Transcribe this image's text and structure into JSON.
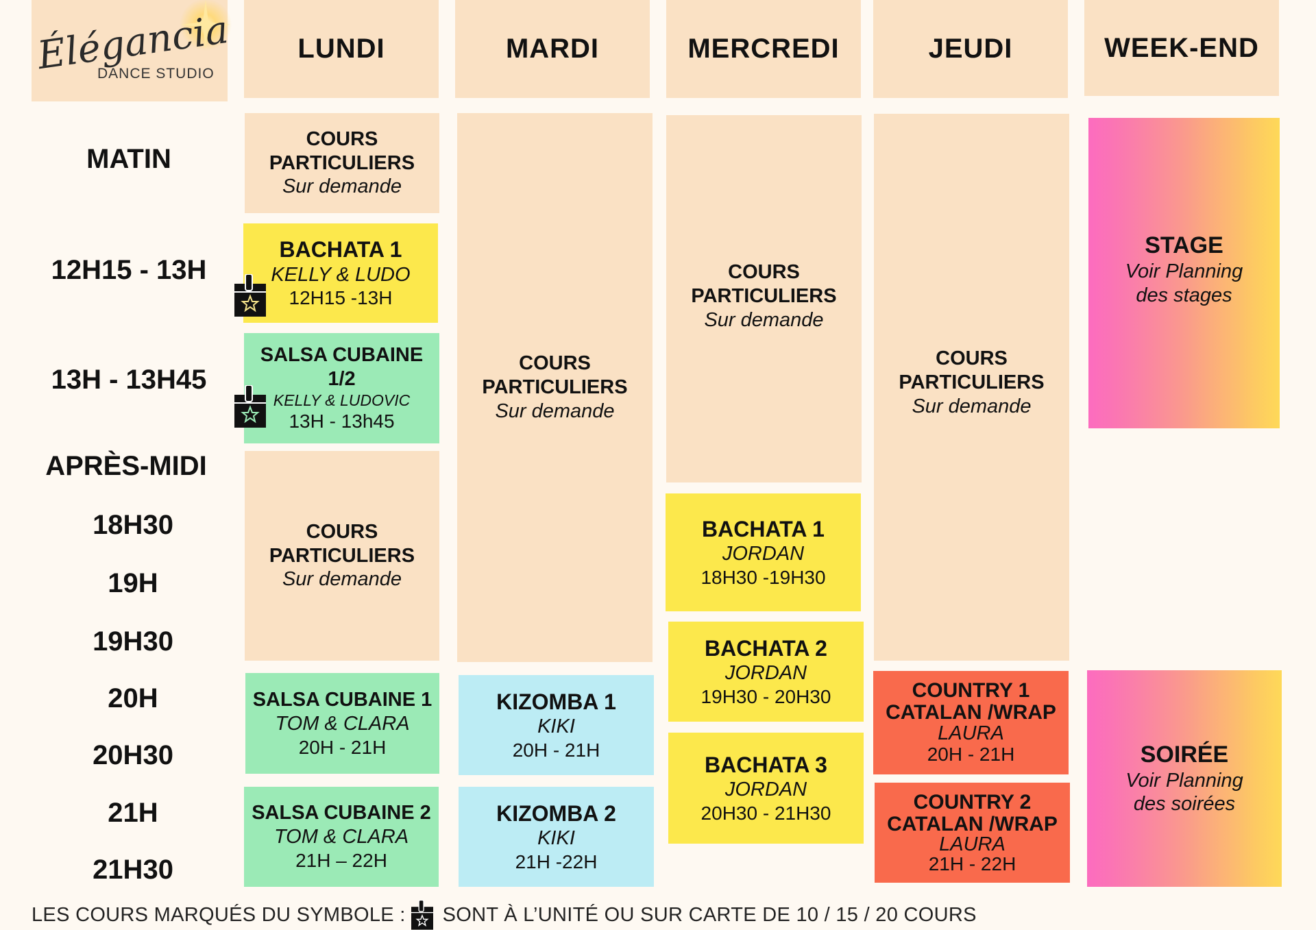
{
  "logo": {
    "name": "Élégancia",
    "subtitle": "DANCE STUDIO"
  },
  "days": [
    "LUNDI",
    "MARDI",
    "MERCREDI",
    "JEUDI",
    "WEEK-END"
  ],
  "times": {
    "matin": "MATIN",
    "t1": "12H15 - 13H",
    "t2": "13H - 13H45",
    "apres_midi": "APRÈS-MIDI",
    "t3": "18H30",
    "t4": "19H",
    "t5": "19H30",
    "t6": "20H",
    "t7": "20H30",
    "t8": "21H",
    "t9": "21H30"
  },
  "private": {
    "line1": "COURS",
    "line2": "PARTICULIERS",
    "line3": "Sur demande"
  },
  "lundi": {
    "bachata1": {
      "title": "BACHATA 1",
      "teacher": "KELLY & LUDO",
      "hours": "12H15 -13H"
    },
    "salsa12": {
      "title": "SALSA CUBAINE",
      "level": "1/2",
      "teacher": "KELLY & LUDOVIC",
      "hours": "13H - 13h45"
    },
    "salsa1": {
      "title": "SALSA CUBAINE 1",
      "teacher": "TOM & CLARA",
      "hours": "20H - 21H"
    },
    "salsa2": {
      "title": "SALSA CUBAINE 2",
      "teacher": "TOM & CLARA",
      "hours": "21H – 22H"
    }
  },
  "mardi": {
    "kizomba1": {
      "title": "KIZOMBA 1",
      "teacher": "KIKI",
      "hours": "20H - 21H"
    },
    "kizomba2": {
      "title": "KIZOMBA 2",
      "teacher": "KIKI",
      "hours": "21H -22H"
    }
  },
  "mercredi": {
    "bachata1": {
      "title": "BACHATA 1",
      "teacher": "JORDAN",
      "hours": "18H30 -19H30"
    },
    "bachata2": {
      "title": "BACHATA 2",
      "teacher": "JORDAN",
      "hours": "19H30 - 20H30"
    },
    "bachata3": {
      "title": "BACHATA 3",
      "teacher": "JORDAN",
      "hours": "20H30 - 21H30"
    }
  },
  "jeudi": {
    "country1": {
      "title": "COUNTRY  1",
      "subtitle": "CATALAN /WRAP",
      "teacher": "LAURA",
      "hours": "20H - 21H"
    },
    "country2": {
      "title": "COUNTRY 2",
      "subtitle": "CATALAN /WRAP",
      "teacher": "LAURA",
      "hours": "21H - 22H"
    }
  },
  "weekend": {
    "stage": {
      "title": "STAGE",
      "line1": "Voir Planning",
      "line2": "des stages"
    },
    "soiree": {
      "title": "SOIRÉE",
      "line1": "Voir Planning",
      "line2": "des soirées"
    }
  },
  "footer": {
    "before": "LES COURS MARQUÉS DU SYMBOLE :",
    "after": "SONT À L’UNITÉ OU SUR CARTE DE 10 / 15 / 20 COURS"
  },
  "colors": {
    "peach": "#fae1c4",
    "yellow": "#fce84c",
    "green": "#9beab6",
    "blue": "#bcecf4",
    "red": "#f96a4c",
    "pink": "#fc6cbf",
    "gold": "#fed958"
  },
  "icons": [
    "sparkle-icon",
    "card-star-icon"
  ]
}
